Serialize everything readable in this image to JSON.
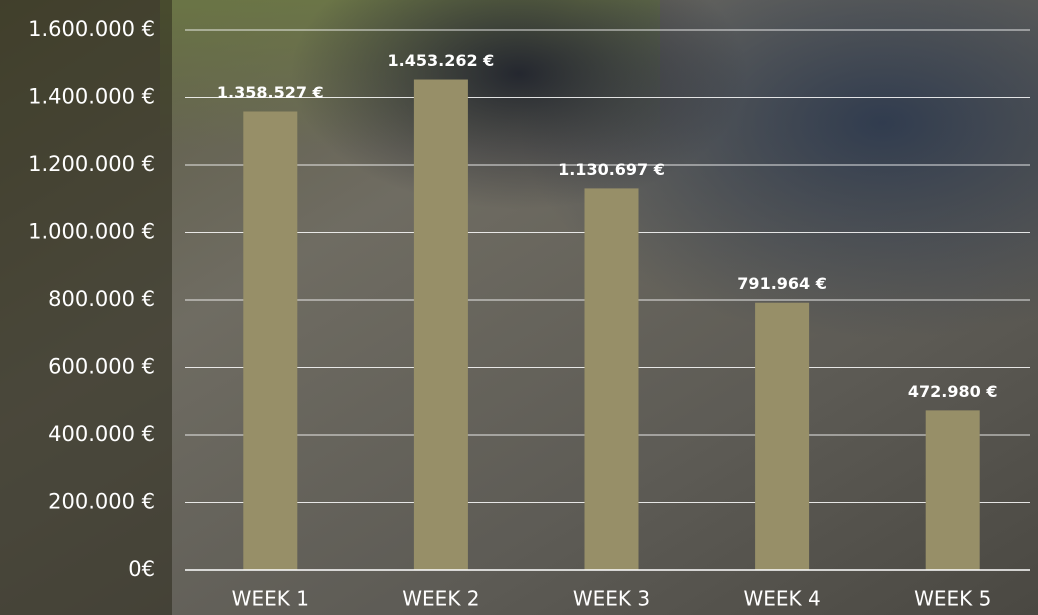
{
  "chart_data": {
    "type": "bar",
    "categories": [
      "WEEK 1",
      "WEEK 2",
      "WEEK 3",
      "WEEK 4",
      "WEEK 5"
    ],
    "values": [
      1358527,
      1453262,
      1130697,
      791964,
      472980
    ],
    "value_labels": [
      "1.358.527 €",
      "1.453.262 €",
      "1.130.697 €",
      "791.964 €",
      "472.980 €"
    ],
    "color": "#978f68",
    "ylim": [
      0,
      1600000
    ],
    "yticks": [
      {
        "value": 0,
        "label": "0€"
      },
      {
        "value": 200000,
        "label": "200.000 €"
      },
      {
        "value": 400000,
        "label": "400.000 €"
      },
      {
        "value": 600000,
        "label": "600.000 €"
      },
      {
        "value": 800000,
        "label": "800.000 €"
      },
      {
        "value": 1000000,
        "label": "1.000.000 €"
      },
      {
        "value": 1200000,
        "label": "1.200.000 €"
      },
      {
        "value": 1400000,
        "label": "1.400.000 €"
      },
      {
        "value": 1600000,
        "label": "1.600.000 €"
      }
    ],
    "grid": true
  }
}
